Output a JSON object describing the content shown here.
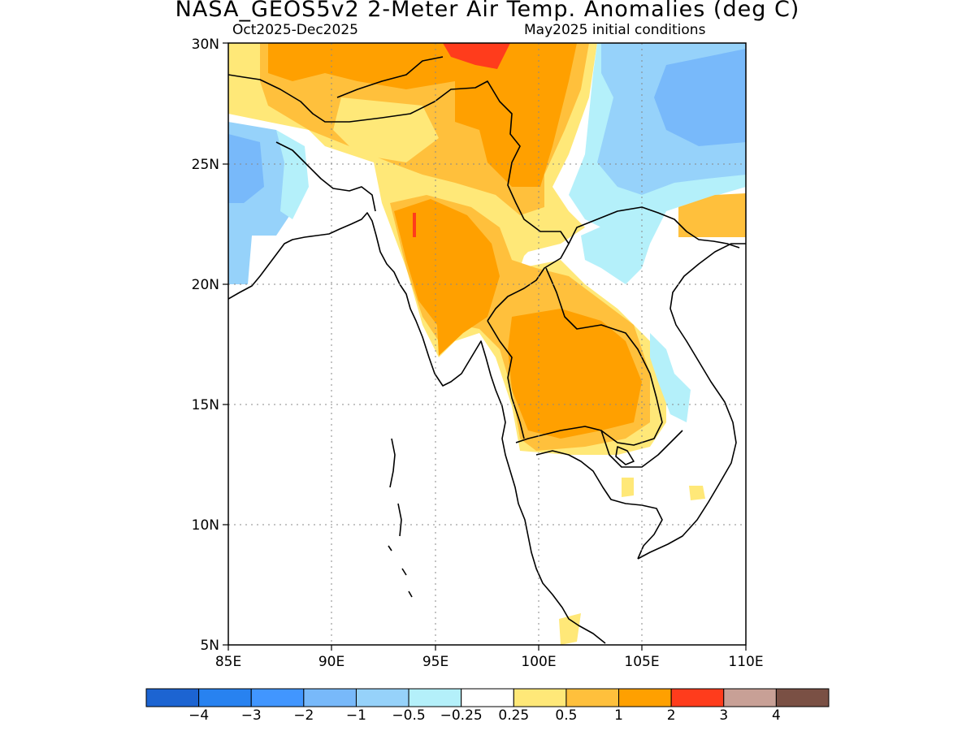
{
  "title": "NASA_GEOS5v2 2-Meter Air Temp. Anomalies (deg C)",
  "subtitle_left": "Oct2025-Dec2025",
  "subtitle_right": "May2025 initial conditions",
  "map": {
    "lon_range": [
      85,
      110
    ],
    "lat_range": [
      5,
      30
    ],
    "lon_ticks": [
      "85E",
      "90E",
      "95E",
      "100E",
      "105E",
      "110E"
    ],
    "lat_ticks": [
      "5N",
      "10N",
      "15N",
      "20N",
      "25N",
      "30N"
    ],
    "grid": "dotted"
  },
  "colorbar": {
    "colors": [
      "#1c64d2",
      "#2882f0",
      "#4196ff",
      "#78b9fa",
      "#96d2fa",
      "#b4f0fa",
      "#ffffff",
      "#ffe878",
      "#ffc03c",
      "#ffa000",
      "#ff3c1c",
      "#c8a096",
      "#7a5044"
    ],
    "labels": [
      "−4",
      "−3",
      "−2",
      "−1",
      "−0.5",
      "−0.25",
      "0.25",
      "0.5",
      "1",
      "2",
      "3",
      "4"
    ]
  }
}
